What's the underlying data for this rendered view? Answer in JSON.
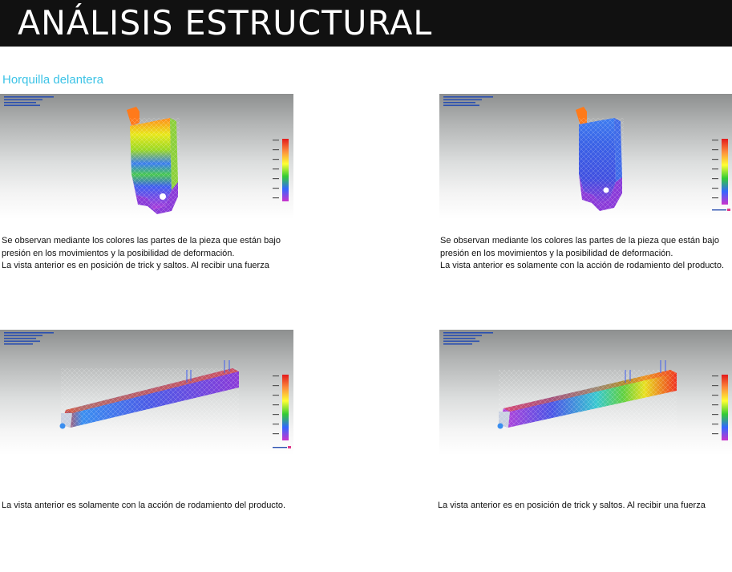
{
  "header": {
    "title": "ANÁLISIS ESTRUCTURAL"
  },
  "section": {
    "subtitle": "Horquilla delantera"
  },
  "colors": {
    "accent": "#3cc3e6",
    "title_bg": "#111111"
  },
  "figures": [
    {
      "caption_lines": [
        "Se observan mediante los colores las partes de la pieza que están bajo",
        "presión en los movimientos y la posibilidad de deformación.",
        "La vista anterior es en posición de trick y saltos. Al recibir una fuerza"
      ]
    },
    {
      "caption_lines": [
        "Se observan mediante los colores las partes de la pieza que están bajo",
        "presión en los movimientos y la posibilidad de deformación.",
        "La vista anterior es solamente con la acción de rodamiento del producto."
      ]
    },
    {
      "caption_lines": [
        "La vista anterior es solamente con la acción de rodamiento del producto."
      ]
    },
    {
      "caption_lines": [
        "La vista anterior es en posición de trick y saltos. Al recibir una fuerza"
      ]
    }
  ]
}
